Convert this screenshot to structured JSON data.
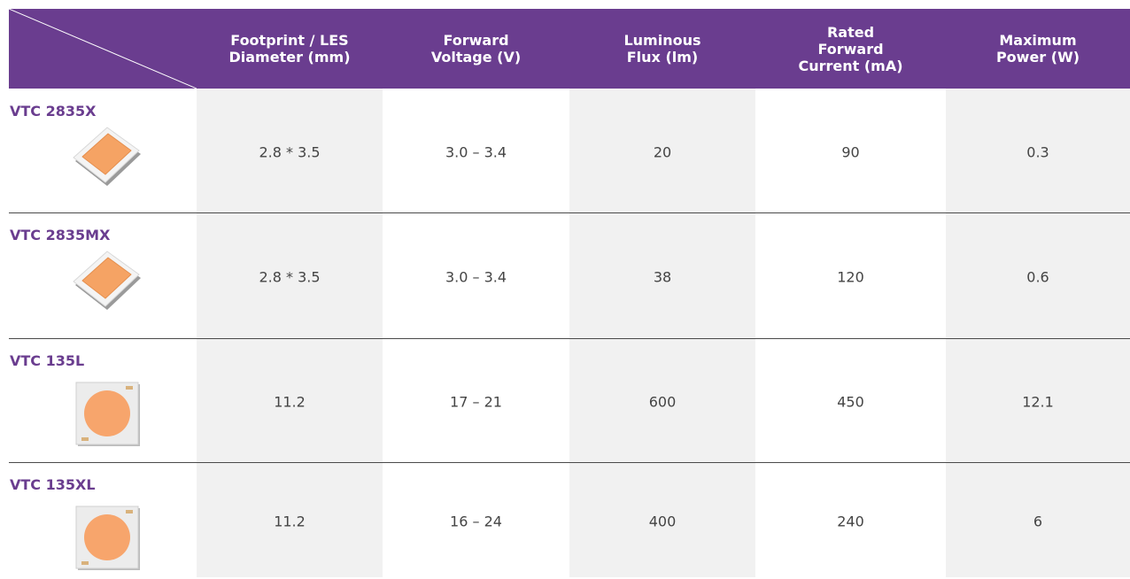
{
  "header": {
    "columns": [
      [
        "Footprint / LES",
        "Diameter (mm)"
      ],
      [
        "Forward",
        "Voltage (V)"
      ],
      [
        "Luminous",
        "Flux (lm)"
      ],
      [
        "Rated",
        "Forward",
        "Current (mA)"
      ],
      [
        "Maximum",
        "Power (W)"
      ]
    ]
  },
  "table": {
    "rows": [
      {
        "name": "VTC 2835X",
        "cells": [
          "2.8 * 3.5",
          "3.0 – 3.4",
          "20",
          "90",
          "0.3"
        ]
      },
      {
        "name": "VTC 2835MX",
        "cells": [
          "2.8 * 3.5",
          "3.0 – 3.4",
          "38",
          "120",
          "0.6"
        ]
      },
      {
        "name": "VTC 135L",
        "cells": [
          "11.2",
          "17 – 21",
          "600",
          "450",
          "12.1"
        ]
      },
      {
        "name": "VTC 135XL",
        "cells": [
          "11.2",
          "16 – 24",
          "400",
          "240",
          "6"
        ]
      }
    ]
  }
}
